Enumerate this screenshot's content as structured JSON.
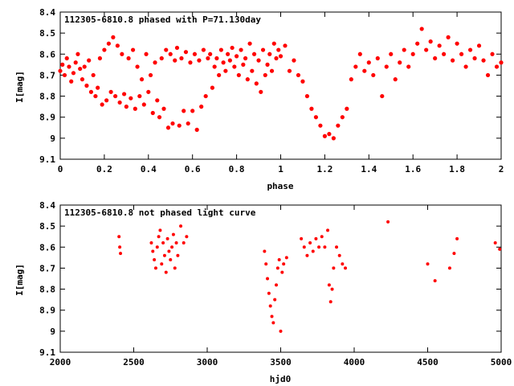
{
  "chart_data": [
    {
      "type": "scatter",
      "title": "112305-6810.8 phased with P=71.130day",
      "xlabel": "phase",
      "ylabel": "I[mag]",
      "xlim": [
        0,
        2
      ],
      "ylim": [
        9.1,
        8.4
      ],
      "y_inverted": true,
      "grid": false,
      "legend": "none",
      "marker_color": "#ff0000",
      "xticks": [
        "0",
        "0.2",
        "0.4",
        "0.6",
        "0.8",
        "1",
        "1.2",
        "1.4",
        "1.6",
        "1.8",
        "2"
      ],
      "xtick_values": [
        0,
        0.2,
        0.4,
        0.6,
        0.8,
        1.0,
        1.2,
        1.4,
        1.6,
        1.8,
        2.0
      ],
      "yticks": [
        "8.4",
        "8.5",
        "8.6",
        "8.7",
        "8.8",
        "8.9",
        "9",
        "9.1"
      ],
      "ytick_values": [
        8.4,
        8.5,
        8.6,
        8.7,
        8.8,
        8.9,
        9.0,
        9.1
      ],
      "points": [
        [
          0.0,
          8.68
        ],
        [
          0.01,
          8.65
        ],
        [
          0.02,
          8.7
        ],
        [
          0.03,
          8.62
        ],
        [
          0.04,
          8.66
        ],
        [
          0.05,
          8.73
        ],
        [
          0.06,
          8.69
        ],
        [
          0.07,
          8.64
        ],
        [
          0.08,
          8.6
        ],
        [
          0.09,
          8.67
        ],
        [
          0.1,
          8.72
        ],
        [
          0.11,
          8.66
        ],
        [
          0.12,
          8.75
        ],
        [
          0.13,
          8.63
        ],
        [
          0.14,
          8.78
        ],
        [
          0.15,
          8.7
        ],
        [
          0.16,
          8.8
        ],
        [
          0.17,
          8.76
        ],
        [
          0.18,
          8.62
        ],
        [
          0.19,
          8.84
        ],
        [
          0.2,
          8.58
        ],
        [
          0.21,
          8.82
        ],
        [
          0.22,
          8.55
        ],
        [
          0.23,
          8.78
        ],
        [
          0.24,
          8.52
        ],
        [
          0.25,
          8.8
        ],
        [
          0.26,
          8.56
        ],
        [
          0.27,
          8.83
        ],
        [
          0.28,
          8.6
        ],
        [
          0.29,
          8.79
        ],
        [
          0.3,
          8.85
        ],
        [
          0.31,
          8.62
        ],
        [
          0.32,
          8.81
        ],
        [
          0.33,
          8.58
        ],
        [
          0.34,
          8.86
        ],
        [
          0.35,
          8.66
        ],
        [
          0.36,
          8.8
        ],
        [
          0.37,
          8.72
        ],
        [
          0.38,
          8.84
        ],
        [
          0.39,
          8.6
        ],
        [
          0.4,
          8.78
        ],
        [
          0.41,
          8.7
        ],
        [
          0.42,
          8.88
        ],
        [
          0.43,
          8.64
        ],
        [
          0.44,
          8.82
        ],
        [
          0.45,
          8.9
        ],
        [
          0.46,
          8.62
        ],
        [
          0.47,
          8.86
        ],
        [
          0.48,
          8.58
        ],
        [
          0.49,
          8.95
        ],
        [
          0.5,
          8.6
        ],
        [
          0.51,
          8.93
        ],
        [
          0.52,
          8.63
        ],
        [
          0.53,
          8.57
        ],
        [
          0.54,
          8.94
        ],
        [
          0.55,
          8.62
        ],
        [
          0.56,
          8.87
        ],
        [
          0.57,
          8.59
        ],
        [
          0.58,
          8.93
        ],
        [
          0.59,
          8.64
        ],
        [
          0.6,
          8.87
        ],
        [
          0.61,
          8.6
        ],
        [
          0.62,
          8.96
        ],
        [
          0.63,
          8.63
        ],
        [
          0.64,
          8.85
        ],
        [
          0.65,
          8.58
        ],
        [
          0.66,
          8.8
        ],
        [
          0.67,
          8.62
        ],
        [
          0.68,
          8.6
        ],
        [
          0.69,
          8.76
        ],
        [
          0.7,
          8.66
        ],
        [
          0.71,
          8.62
        ],
        [
          0.72,
          8.7
        ],
        [
          0.73,
          8.58
        ],
        [
          0.74,
          8.64
        ],
        [
          0.75,
          8.68
        ],
        [
          0.76,
          8.6
        ],
        [
          0.77,
          8.63
        ],
        [
          0.78,
          8.57
        ],
        [
          0.79,
          8.66
        ],
        [
          0.8,
          8.61
        ],
        [
          0.81,
          8.7
        ],
        [
          0.82,
          8.58
        ],
        [
          0.83,
          8.65
        ],
        [
          0.84,
          8.62
        ],
        [
          0.85,
          8.72
        ],
        [
          0.86,
          8.55
        ],
        [
          0.87,
          8.68
        ],
        [
          0.88,
          8.6
        ],
        [
          0.89,
          8.74
        ],
        [
          0.9,
          8.63
        ],
        [
          0.91,
          8.78
        ],
        [
          0.92,
          8.58
        ],
        [
          0.93,
          8.7
        ],
        [
          0.94,
          8.65
        ],
        [
          0.95,
          8.6
        ],
        [
          0.96,
          8.68
        ],
        [
          0.97,
          8.55
        ],
        [
          0.98,
          8.62
        ],
        [
          0.99,
          8.58
        ],
        [
          1.0,
          8.61
        ],
        [
          1.02,
          8.56
        ],
        [
          1.04,
          8.68
        ],
        [
          1.06,
          8.63
        ],
        [
          1.08,
          8.7
        ],
        [
          1.1,
          8.73
        ],
        [
          1.12,
          8.8
        ],
        [
          1.14,
          8.86
        ],
        [
          1.16,
          8.9
        ],
        [
          1.18,
          8.94
        ],
        [
          1.2,
          8.99
        ],
        [
          1.22,
          8.98
        ],
        [
          1.24,
          9.0
        ],
        [
          1.26,
          8.94
        ],
        [
          1.28,
          8.9
        ],
        [
          1.3,
          8.86
        ],
        [
          1.32,
          8.72
        ],
        [
          1.34,
          8.66
        ],
        [
          1.36,
          8.6
        ],
        [
          1.38,
          8.68
        ],
        [
          1.4,
          8.64
        ],
        [
          1.42,
          8.7
        ],
        [
          1.44,
          8.62
        ],
        [
          1.46,
          8.8
        ],
        [
          1.48,
          8.66
        ],
        [
          1.5,
          8.6
        ],
        [
          1.52,
          8.72
        ],
        [
          1.54,
          8.64
        ],
        [
          1.56,
          8.58
        ],
        [
          1.58,
          8.66
        ],
        [
          1.6,
          8.6
        ],
        [
          1.62,
          8.55
        ],
        [
          1.64,
          8.48
        ],
        [
          1.66,
          8.58
        ],
        [
          1.68,
          8.54
        ],
        [
          1.7,
          8.62
        ],
        [
          1.72,
          8.56
        ],
        [
          1.74,
          8.6
        ],
        [
          1.76,
          8.52
        ],
        [
          1.78,
          8.63
        ],
        [
          1.8,
          8.55
        ],
        [
          1.82,
          8.6
        ],
        [
          1.84,
          8.66
        ],
        [
          1.86,
          8.58
        ],
        [
          1.88,
          8.62
        ],
        [
          1.9,
          8.56
        ],
        [
          1.92,
          8.63
        ],
        [
          1.94,
          8.7
        ],
        [
          1.96,
          8.6
        ],
        [
          1.98,
          8.66
        ],
        [
          2.0,
          8.64
        ]
      ]
    },
    {
      "type": "scatter",
      "title": "112305-6810.8 not phased light curve",
      "xlabel": "hjd0",
      "ylabel": "I[mag]",
      "xlim": [
        2000,
        5000
      ],
      "ylim": [
        9.1,
        8.4
      ],
      "y_inverted": true,
      "grid": false,
      "legend": "none",
      "marker_color": "#ff0000",
      "xticks": [
        "2000",
        "2500",
        "3000",
        "3500",
        "4000",
        "4500",
        "5000"
      ],
      "xtick_values": [
        2000,
        2500,
        3000,
        3500,
        4000,
        4500,
        5000
      ],
      "yticks": [
        "8.4",
        "8.5",
        "8.6",
        "8.7",
        "8.8",
        "8.9",
        "9",
        "9.1"
      ],
      "ytick_values": [
        8.4,
        8.5,
        8.6,
        8.7,
        8.8,
        8.9,
        9.0,
        9.1
      ],
      "points": [
        [
          2400,
          8.55
        ],
        [
          2405,
          8.6
        ],
        [
          2410,
          8.63
        ],
        [
          2620,
          8.58
        ],
        [
          2630,
          8.62
        ],
        [
          2640,
          8.66
        ],
        [
          2650,
          8.7
        ],
        [
          2660,
          8.6
        ],
        [
          2670,
          8.55
        ],
        [
          2680,
          8.52
        ],
        [
          2690,
          8.68
        ],
        [
          2700,
          8.58
        ],
        [
          2710,
          8.64
        ],
        [
          2720,
          8.72
        ],
        [
          2730,
          8.56
        ],
        [
          2740,
          8.62
        ],
        [
          2750,
          8.66
        ],
        [
          2760,
          8.6
        ],
        [
          2770,
          8.54
        ],
        [
          2780,
          8.7
        ],
        [
          2790,
          8.58
        ],
        [
          2800,
          8.64
        ],
        [
          2820,
          8.5
        ],
        [
          2840,
          8.58
        ],
        [
          2860,
          8.55
        ],
        [
          3390,
          8.62
        ],
        [
          3400,
          8.68
        ],
        [
          3410,
          8.75
        ],
        [
          3420,
          8.82
        ],
        [
          3430,
          8.88
        ],
        [
          3440,
          8.93
        ],
        [
          3450,
          8.96
        ],
        [
          3460,
          8.85
        ],
        [
          3470,
          8.78
        ],
        [
          3480,
          8.7
        ],
        [
          3490,
          8.66
        ],
        [
          3500,
          9.0
        ],
        [
          3510,
          8.72
        ],
        [
          3520,
          8.68
        ],
        [
          3540,
          8.65
        ],
        [
          3640,
          8.56
        ],
        [
          3660,
          8.6
        ],
        [
          3680,
          8.64
        ],
        [
          3700,
          8.58
        ],
        [
          3720,
          8.62
        ],
        [
          3740,
          8.56
        ],
        [
          3760,
          8.6
        ],
        [
          3780,
          8.55
        ],
        [
          3800,
          8.6
        ],
        [
          3820,
          8.52
        ],
        [
          3830,
          8.78
        ],
        [
          3840,
          8.86
        ],
        [
          3850,
          8.8
        ],
        [
          3860,
          8.7
        ],
        [
          3880,
          8.6
        ],
        [
          3900,
          8.64
        ],
        [
          3920,
          8.68
        ],
        [
          3940,
          8.7
        ],
        [
          4230,
          8.48
        ],
        [
          4500,
          8.68
        ],
        [
          4550,
          8.76
        ],
        [
          4650,
          8.7
        ],
        [
          4680,
          8.63
        ],
        [
          4700,
          8.56
        ],
        [
          4960,
          8.58
        ],
        [
          4990,
          8.61
        ]
      ]
    }
  ]
}
